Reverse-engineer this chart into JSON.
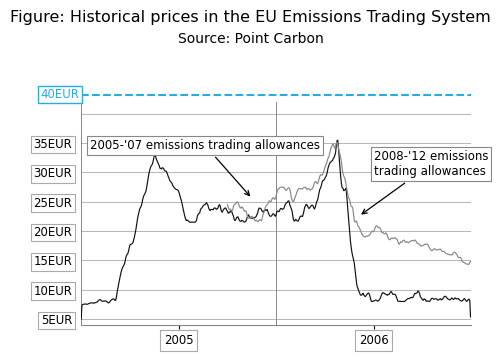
{
  "title": "Figure: Historical prices in the EU Emissions Trading System",
  "subtitle": "Source: Point Carbon",
  "yticks": [
    5,
    10,
    15,
    20,
    25,
    30,
    35
  ],
  "ylim": [
    4,
    42
  ],
  "xlim": [
    0,
    520
  ],
  "dashed_line_y": 40,
  "dashed_line_color": "#29abe2",
  "label_40eur_color": "#29abe2",
  "annotation1_text": "2005-'07 emissions trading allowances",
  "annotation2_text": "2008-'12 emissions\ntrading allowances",
  "line1_color": "#111111",
  "line2_color": "#888888",
  "bg_color": "#ffffff",
  "title_fontsize": 11.5,
  "subtitle_fontsize": 10,
  "tick_fontsize": 8.5,
  "annot_fontsize": 8.5,
  "grid_color": "#999999",
  "separator_color": "#888888"
}
